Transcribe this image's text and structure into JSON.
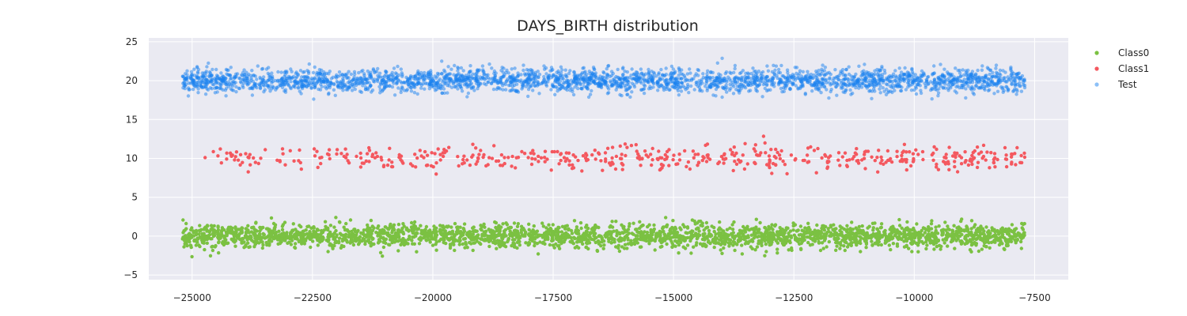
{
  "chart_data": {
    "type": "scatter",
    "title": "DAYS_BIRTH distribution",
    "xlabel": "",
    "ylabel": "",
    "xlim": [
      -25900,
      -6800
    ],
    "ylim": [
      -5.6,
      25.5
    ],
    "xticks": [
      -25000,
      -22500,
      -20000,
      -17500,
      -15000,
      -12500,
      -10000,
      -7500
    ],
    "xtick_labels": [
      "−25000",
      "−22500",
      "−20000",
      "−17500",
      "−15000",
      "−12500",
      "−10000",
      "−7500"
    ],
    "yticks": [
      -5,
      0,
      5,
      10,
      15,
      20,
      25
    ],
    "ytick_labels": [
      "−5",
      "0",
      "5",
      "10",
      "15",
      "20",
      "25"
    ],
    "grid": true,
    "legend_position": "upper-right-outside",
    "series": [
      {
        "name": "Class0",
        "color": "#7bc142",
        "opacity": 1.0,
        "center_y": 0,
        "spread": 0.95,
        "x_range": [
          -25200,
          -7700
        ],
        "count": 2800,
        "description_of_pattern": "dense horizontal band around y=0"
      },
      {
        "name": "Class1",
        "color": "#f4585f",
        "opacity": 1.0,
        "center_y": 10,
        "spread": 1.0,
        "x_range": [
          -25000,
          -7700
        ],
        "count": 520,
        "description_of_pattern": "sparse band around y=10, denser toward x=-10000"
      },
      {
        "name": "Test",
        "color": "#1a82f0",
        "opacity": 0.5,
        "center_y": 20,
        "spread": 0.95,
        "x_range": [
          -25200,
          -7700
        ],
        "count": 2900,
        "description_of_pattern": "dense horizontal band around y=20"
      }
    ]
  }
}
